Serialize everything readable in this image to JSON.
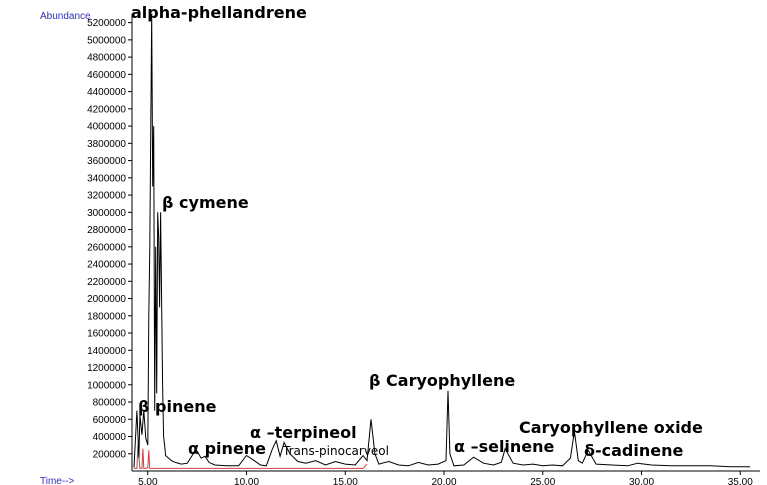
{
  "chart_data": {
    "type": "line",
    "ylabel": "Abundance",
    "xlabel": "Time-->",
    "ylim": [
      0,
      5300000
    ],
    "xlim": [
      4.2,
      36
    ],
    "yticks": [
      "200000",
      "400000",
      "600000",
      "800000",
      "1000000",
      "1200000",
      "1400000",
      "1600000",
      "1800000",
      "2000000",
      "2200000",
      "2400000",
      "2600000",
      "2800000",
      "3000000",
      "3200000",
      "3400000",
      "3600000",
      "3800000",
      "4000000",
      "4200000",
      "4400000",
      "4600000",
      "4800000",
      "5000000",
      "5200000"
    ],
    "xticks": [
      "5.00",
      "10.00",
      "15.00",
      "20.00",
      "25.00",
      "30.00",
      "35.00"
    ],
    "series": [
      {
        "x": [
          4.3,
          4.45,
          4.55,
          4.6,
          4.7,
          4.8,
          4.9,
          5.0,
          5.05,
          5.1,
          5.2,
          5.25,
          5.3,
          5.35,
          5.4,
          5.45,
          5.5,
          5.55,
          5.6,
          5.65,
          5.7,
          5.75,
          5.8,
          5.85,
          5.9,
          6.0,
          6.1,
          6.2,
          6.4,
          6.7,
          7.0,
          7.3,
          7.5,
          7.7,
          7.9,
          8.1,
          8.4,
          9.0,
          9.6,
          10.0,
          10.4,
          10.7,
          11.0,
          11.3,
          11.5,
          11.7,
          11.9,
          12.2,
          12.6,
          13.0,
          13.5,
          14.0,
          14.5,
          15.0,
          15.5,
          15.9,
          16.1,
          16.3,
          16.5,
          16.7,
          17.2,
          17.7,
          18.2,
          18.7,
          19.2,
          19.7,
          20.1,
          20.2,
          20.3,
          20.5,
          21.0,
          21.5,
          22.0,
          22.5,
          22.9,
          23.1,
          23.5,
          24.0,
          24.5,
          25.0,
          25.5,
          26.0,
          26.4,
          26.6,
          26.8,
          27.0,
          27.3,
          27.7,
          28.5,
          29.3,
          29.8,
          30.5,
          31.5,
          32.5,
          33.5,
          34.5,
          35.5
        ],
        "y": [
          40000,
          700000,
          150000,
          650000,
          420000,
          700000,
          380000,
          300000,
          1800000,
          2600000,
          5300000,
          3300000,
          4000000,
          700000,
          2600000,
          900000,
          3000000,
          2700000,
          1900000,
          3000000,
          2000000,
          1000000,
          400000,
          300000,
          180000,
          160000,
          140000,
          120000,
          100000,
          80000,
          90000,
          200000,
          230000,
          150000,
          170000,
          100000,
          70000,
          60000,
          60000,
          180000,
          120000,
          70000,
          60000,
          250000,
          350000,
          170000,
          330000,
          200000,
          110000,
          90000,
          120000,
          70000,
          110000,
          80000,
          70000,
          180000,
          120000,
          600000,
          200000,
          80000,
          110000,
          70000,
          60000,
          100000,
          70000,
          80000,
          120000,
          930000,
          200000,
          60000,
          70000,
          160000,
          90000,
          70000,
          100000,
          260000,
          90000,
          70000,
          80000,
          60000,
          70000,
          60000,
          150000,
          460000,
          120000,
          90000,
          240000,
          80000,
          70000,
          60000,
          90000,
          70000,
          60000,
          60000,
          60000,
          50000,
          50000
        ]
      },
      {
        "x": [
          4.3,
          4.45,
          4.5,
          4.6,
          4.7,
          4.75,
          4.8,
          4.9,
          5.0,
          5.05,
          5.1,
          5.2,
          5.3,
          7.5,
          15.9,
          16.1
        ],
        "y": [
          30000,
          30000,
          300000,
          30000,
          30000,
          260000,
          30000,
          30000,
          40000,
          240000,
          30000,
          30000,
          30000,
          30000,
          30000,
          80000
        ]
      }
    ],
    "annotations": [
      {
        "text": "alpha-phellandrene",
        "x": 5.25
      },
      {
        "text": "β cymene",
        "x": 5.65
      },
      {
        "text": "β pinene",
        "x": 4.7
      },
      {
        "text": "α pinene",
        "x": 7.5
      },
      {
        "text": "α –terpineol",
        "x": 11.5
      },
      {
        "text": "Trans-pinocarveol",
        "x": 13.5
      },
      {
        "text": "β Caryophyllene",
        "x": 20.2
      },
      {
        "text": "α –selinene",
        "x": 23.0
      },
      {
        "text": "Caryophyllene oxide",
        "x": 26.6
      },
      {
        "text": "δ-cadinene",
        "x": 27.4
      }
    ],
    "colors": {
      "trace": "#000000",
      "baseline_peaks": "#d04040",
      "axis_names": "#3030c0"
    }
  }
}
